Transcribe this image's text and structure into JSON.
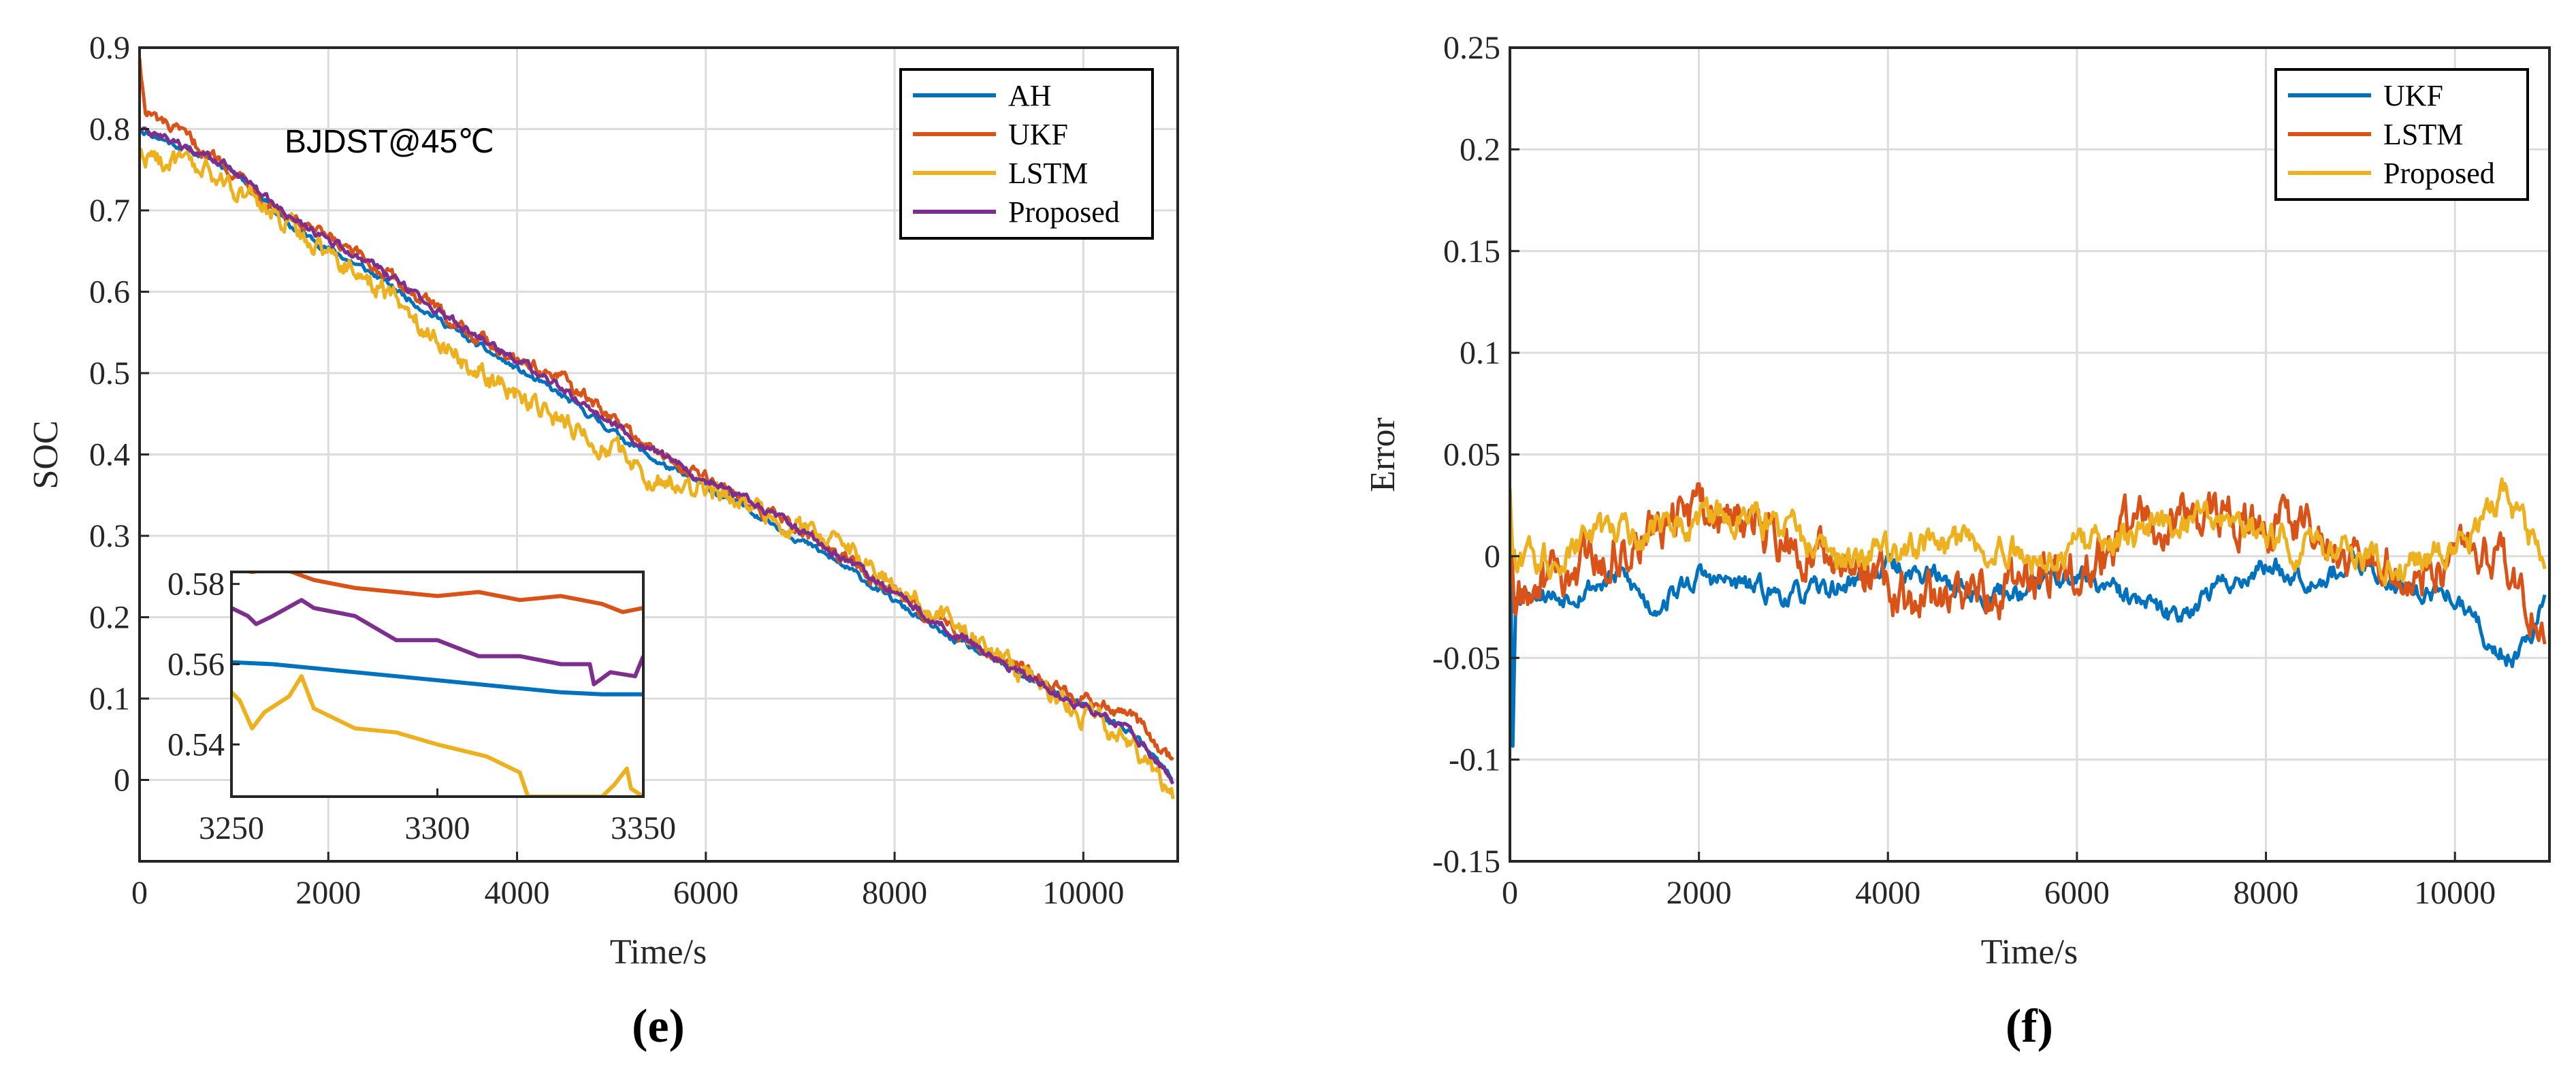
{
  "chart_data": [
    {
      "type": "line",
      "panel_label": "(e)",
      "annotation": "BJDST@45℃",
      "xlabel": "Time/s",
      "ylabel": "SOC",
      "xlim": [
        0,
        11000
      ],
      "ylim": [
        -0.1,
        0.9
      ],
      "xticks": [
        0,
        2000,
        4000,
        6000,
        8000,
        10000
      ],
      "yticks": [
        0,
        0.1,
        0.2,
        0.3,
        0.4,
        0.5,
        0.6,
        0.7,
        0.8,
        0.9
      ],
      "legend_position": "top-right",
      "series": [
        {
          "name": "AH",
          "color": "#0072BD",
          "noise": 0.003,
          "x": [
            0,
            600,
            1000,
            1600,
            2500,
            3500,
            4500,
            5500,
            6500,
            7500,
            8500,
            9500,
            10000,
            10500,
            10950
          ],
          "y": [
            0.8,
            0.77,
            0.75,
            0.68,
            0.62,
            0.54,
            0.47,
            0.39,
            0.33,
            0.26,
            0.18,
            0.12,
            0.09,
            0.06,
            0.0
          ]
        },
        {
          "name": "UKF",
          "color": "#D95319",
          "noise": 0.006,
          "x": [
            0,
            60,
            200,
            600,
            1000,
            1600,
            2500,
            3500,
            4500,
            5500,
            6500,
            7500,
            8500,
            9500,
            10000,
            10500,
            10950
          ],
          "y": [
            0.89,
            0.82,
            0.81,
            0.78,
            0.75,
            0.69,
            0.63,
            0.55,
            0.49,
            0.4,
            0.34,
            0.27,
            0.19,
            0.13,
            0.1,
            0.08,
            0.02
          ]
        },
        {
          "name": "LSTM",
          "color": "#EDB120",
          "noise": 0.01,
          "x": [
            0,
            600,
            1000,
            1600,
            2500,
            3500,
            4500,
            5500,
            6500,
            7500,
            8500,
            9500,
            10000,
            10500,
            10950
          ],
          "y": [
            0.77,
            0.75,
            0.73,
            0.68,
            0.61,
            0.51,
            0.44,
            0.37,
            0.34,
            0.28,
            0.2,
            0.12,
            0.08,
            0.05,
            -0.02
          ]
        },
        {
          "name": "Proposed",
          "color": "#7E2F8E",
          "noise": 0.004,
          "x": [
            0,
            600,
            1000,
            1600,
            2500,
            3500,
            4500,
            5500,
            6500,
            7500,
            8500,
            9500,
            10000,
            10500,
            10950
          ],
          "y": [
            0.8,
            0.77,
            0.75,
            0.69,
            0.63,
            0.55,
            0.48,
            0.4,
            0.34,
            0.27,
            0.19,
            0.12,
            0.09,
            0.06,
            0.0
          ]
        }
      ],
      "inset": {
        "xlim": [
          3250,
          3350
        ],
        "ylim": [
          0.527,
          0.583
        ],
        "xticks": [
          3250,
          3300,
          3350
        ],
        "yticks": [
          0.54,
          0.56,
          0.58
        ],
        "series": [
          {
            "name": "AH",
            "color": "#0072BD",
            "x": [
              3250,
              3260,
              3270,
              3290,
              3310,
              3330,
              3340,
              3350
            ],
            "y": [
              0.5605,
              0.56,
              0.559,
              0.557,
              0.555,
              0.553,
              0.5525,
              0.5525
            ]
          },
          {
            "name": "UKF",
            "color": "#D95319",
            "x": [
              3250,
              3255,
              3262,
              3270,
              3280,
              3290,
              3300,
              3310,
              3320,
              3330,
              3340,
              3345,
              3350
            ],
            "y": [
              0.584,
              0.583,
              0.584,
              0.581,
              0.579,
              0.578,
              0.577,
              0.578,
              0.576,
              0.577,
              0.575,
              0.573,
              0.574
            ]
          },
          {
            "name": "LSTM",
            "color": "#EDB120",
            "x": [
              3250,
              3252,
              3255,
              3258,
              3264,
              3267,
              3270,
              3280,
              3290,
              3300,
              3312,
              3320,
              3322,
              3324,
              3340,
              3343,
              3346,
              3347,
              3350
            ],
            "y": [
              0.553,
              0.551,
              0.544,
              0.548,
              0.552,
              0.557,
              0.549,
              0.544,
              0.543,
              0.54,
              0.537,
              0.533,
              0.527,
              0.527,
              0.527,
              0.53,
              0.534,
              0.529,
              0.527
            ]
          },
          {
            "name": "Proposed",
            "color": "#7E2F8E",
            "x": [
              3250,
              3254,
              3256,
              3260,
              3267,
              3270,
              3280,
              3290,
              3300,
              3310,
              3320,
              3330,
              3337,
              3338,
              3342,
              3348,
              3350
            ],
            "y": [
              0.574,
              0.572,
              0.57,
              0.572,
              0.576,
              0.574,
              0.572,
              0.566,
              0.566,
              0.562,
              0.562,
              0.56,
              0.56,
              0.555,
              0.558,
              0.557,
              0.562
            ]
          }
        ]
      }
    },
    {
      "type": "line",
      "panel_label": "(f)",
      "xlabel": "Time/s",
      "ylabel": "Error",
      "xlim": [
        0,
        11000
      ],
      "ylim": [
        -0.15,
        0.25
      ],
      "xticks": [
        0,
        2000,
        4000,
        6000,
        8000,
        10000
      ],
      "yticks": [
        -0.15,
        -0.1,
        -0.05,
        0,
        0.05,
        0.1,
        0.15,
        0.2,
        0.25
      ],
      "ytick_labels": [
        "-0.15",
        "-0.1",
        "-0.05",
        "0",
        "0.05",
        "0.1",
        "0.15",
        "0.2",
        "0.25"
      ],
      "legend_position": "top-right",
      "series": [
        {
          "name": "UKF",
          "color": "#0072BD",
          "noise": 0.004,
          "x": [
            0,
            30,
            60,
            200,
            500,
            800,
            1200,
            1500,
            2000,
            2500,
            3000,
            3500,
            4000,
            4500,
            5000,
            5500,
            6000,
            6500,
            7000,
            7500,
            8000,
            8500,
            9000,
            9500,
            10000,
            10400,
            10600,
            10950
          ],
          "y": [
            0.035,
            -0.09,
            -0.02,
            -0.015,
            -0.02,
            -0.015,
            -0.01,
            -0.025,
            -0.01,
            -0.015,
            -0.02,
            -0.015,
            -0.005,
            -0.01,
            -0.02,
            -0.015,
            -0.01,
            -0.02,
            -0.03,
            -0.015,
            -0.005,
            -0.01,
            -0.005,
            -0.015,
            -0.02,
            -0.045,
            -0.05,
            -0.025
          ]
        },
        {
          "name": "LSTM",
          "color": "#D95319",
          "noise": 0.009,
          "x": [
            0,
            40,
            300,
            700,
            1200,
            1700,
            2200,
            2700,
            3200,
            3700,
            4200,
            4700,
            5200,
            5700,
            6200,
            6700,
            7200,
            7700,
            8200,
            8700,
            9200,
            9700,
            10200,
            10600,
            10950
          ],
          "y": [
            0.03,
            -0.025,
            -0.015,
            -0.005,
            0.005,
            0.015,
            0.02,
            0.015,
            0.005,
            -0.01,
            -0.02,
            -0.025,
            -0.015,
            -0.01,
            0.0,
            0.015,
            0.02,
            0.02,
            0.015,
            0.005,
            -0.005,
            -0.01,
            0.005,
            -0.01,
            -0.025
          ]
        },
        {
          "name": "Proposed",
          "color": "#EDB120",
          "noise": 0.006,
          "x": [
            0,
            30,
            150,
            500,
            1000,
            1500,
            2000,
            2500,
            3000,
            3500,
            4000,
            4500,
            5000,
            5500,
            6000,
            6500,
            7000,
            7500,
            8000,
            8500,
            9000,
            9500,
            10000,
            10300,
            10500,
            10700,
            10950
          ],
          "y": [
            0.035,
            -0.005,
            -0.005,
            0.0,
            0.01,
            0.015,
            0.02,
            0.02,
            0.01,
            0.0,
            0.0,
            0.005,
            0.005,
            0.0,
            0.005,
            0.01,
            0.015,
            0.015,
            0.01,
            0.005,
            0.0,
            -0.005,
            0.005,
            0.02,
            0.03,
            0.015,
            0.0
          ]
        }
      ]
    }
  ]
}
